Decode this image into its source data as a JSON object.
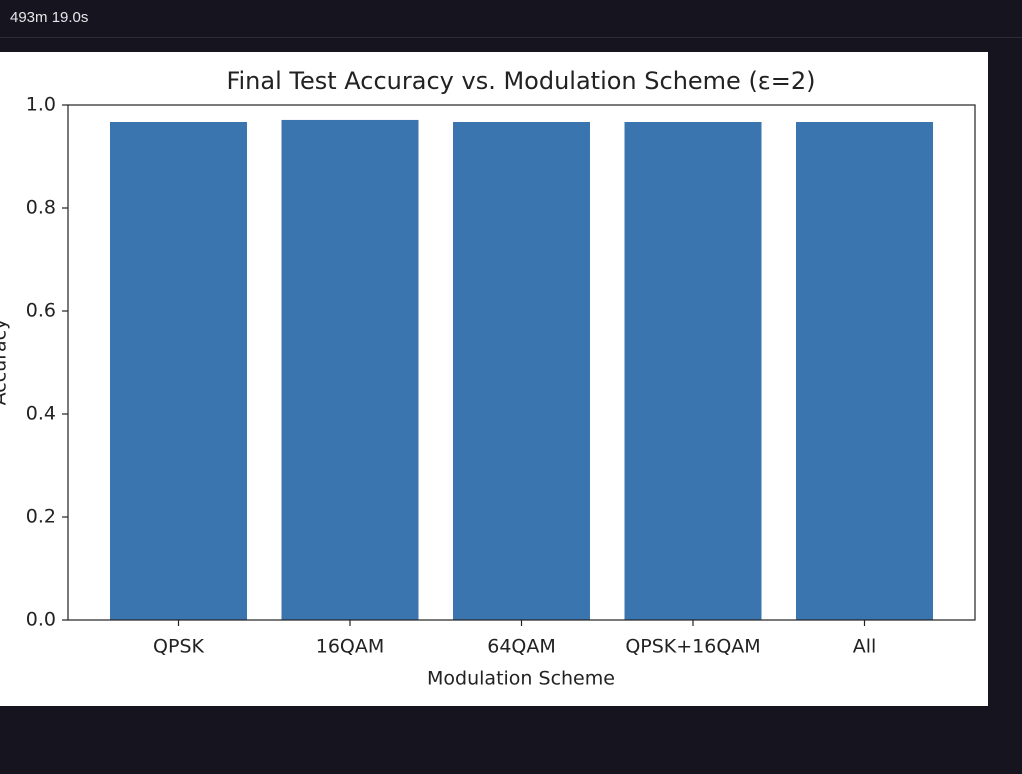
{
  "header": {
    "timer": "493m 19.0s"
  },
  "chart_data": {
    "type": "bar",
    "title": "Final Test Accuracy vs. Modulation Scheme (ε=2)",
    "xlabel": "Modulation Scheme",
    "ylabel": "Accuracy",
    "categories": [
      "QPSK",
      "16QAM",
      "64QAM",
      "QPSK+16QAM",
      "All"
    ],
    "values": [
      0.967,
      0.971,
      0.967,
      0.967,
      0.967
    ],
    "color": "#3b75af",
    "ylim": [
      0,
      1
    ],
    "yticks": [
      {
        "value": 0,
        "label": "0.0"
      },
      0.2,
      0.4,
      0.6,
      0.8,
      {
        "value": 1,
        "label": "1.0"
      }
    ],
    "grid": false
  }
}
